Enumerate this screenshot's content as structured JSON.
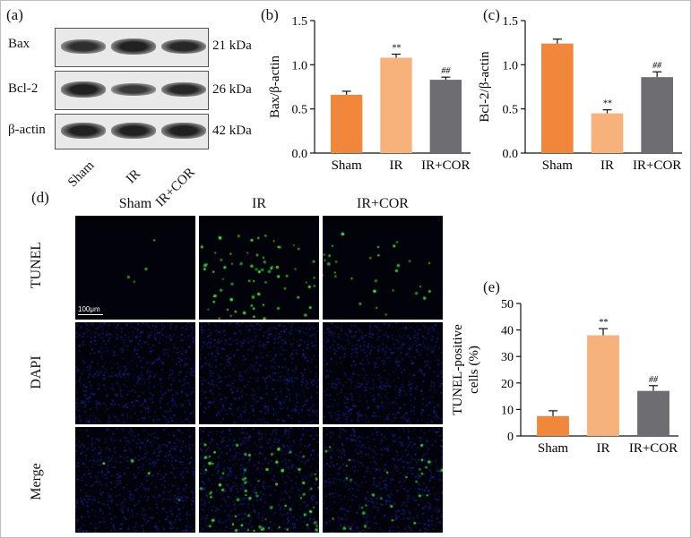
{
  "panels": {
    "a": {
      "label": "(a)",
      "blots": [
        {
          "protein": "Bax",
          "size": "21 kDa",
          "intensity": [
            0.72,
            0.95,
            0.85
          ]
        },
        {
          "protein": "Bcl-2",
          "size": "26 kDa",
          "intensity": [
            0.95,
            0.55,
            0.85
          ]
        },
        {
          "protein": "β-actin",
          "size": "42 kDa",
          "intensity": [
            0.95,
            0.95,
            0.95
          ]
        }
      ],
      "groups": [
        "Sham",
        "IR",
        "IR+COR"
      ]
    },
    "b": {
      "label": "(b)"
    },
    "c": {
      "label": "(c)"
    },
    "d": {
      "label": "(d)",
      "columns": [
        "Sham",
        "IR",
        "IR+COR"
      ],
      "rows": [
        "TUNEL",
        "DAPI",
        "Merge"
      ],
      "scale_bar": "100μm"
    },
    "e": {
      "label": "(e)"
    }
  },
  "colors": {
    "sham": "#f0873a",
    "ir": "#f7b27c",
    "ircor": "#6e6e72",
    "tunel": "#3ef03a",
    "dapi": "#2a36d8"
  },
  "chart_data": [
    {
      "panel": "b",
      "type": "bar",
      "categories": [
        "Sham",
        "IR",
        "IR+COR"
      ],
      "values": [
        0.66,
        1.08,
        0.83
      ],
      "errors": [
        0.04,
        0.04,
        0.03
      ],
      "annotations": [
        "",
        "**",
        "##"
      ],
      "ylabel": "Bax/β-actin",
      "ylim": [
        0,
        1.5
      ],
      "yticks": [
        "0.0",
        "0.5",
        "1.0",
        "1.5"
      ]
    },
    {
      "panel": "c",
      "type": "bar",
      "categories": [
        "Sham",
        "IR",
        "IR+COR"
      ],
      "values": [
        1.24,
        0.45,
        0.86
      ],
      "errors": [
        0.05,
        0.04,
        0.06
      ],
      "annotations": [
        "",
        "**",
        "##"
      ],
      "ylabel": "Bcl-2/β-actin",
      "ylim": [
        0,
        1.5
      ],
      "yticks": [
        "0.0",
        "0.5",
        "1.0",
        "1.5"
      ]
    },
    {
      "panel": "e",
      "type": "bar",
      "categories": [
        "Sham",
        "IR",
        "IR+COR"
      ],
      "values": [
        7.5,
        38,
        17
      ],
      "errors": [
        2,
        2.5,
        2
      ],
      "annotations": [
        "",
        "**",
        "##"
      ],
      "ylabel": "TUNEL-positive cells (%)",
      "ylim": [
        0,
        50
      ],
      "yticks": [
        "0",
        "10",
        "20",
        "30",
        "40",
        "50"
      ]
    }
  ]
}
